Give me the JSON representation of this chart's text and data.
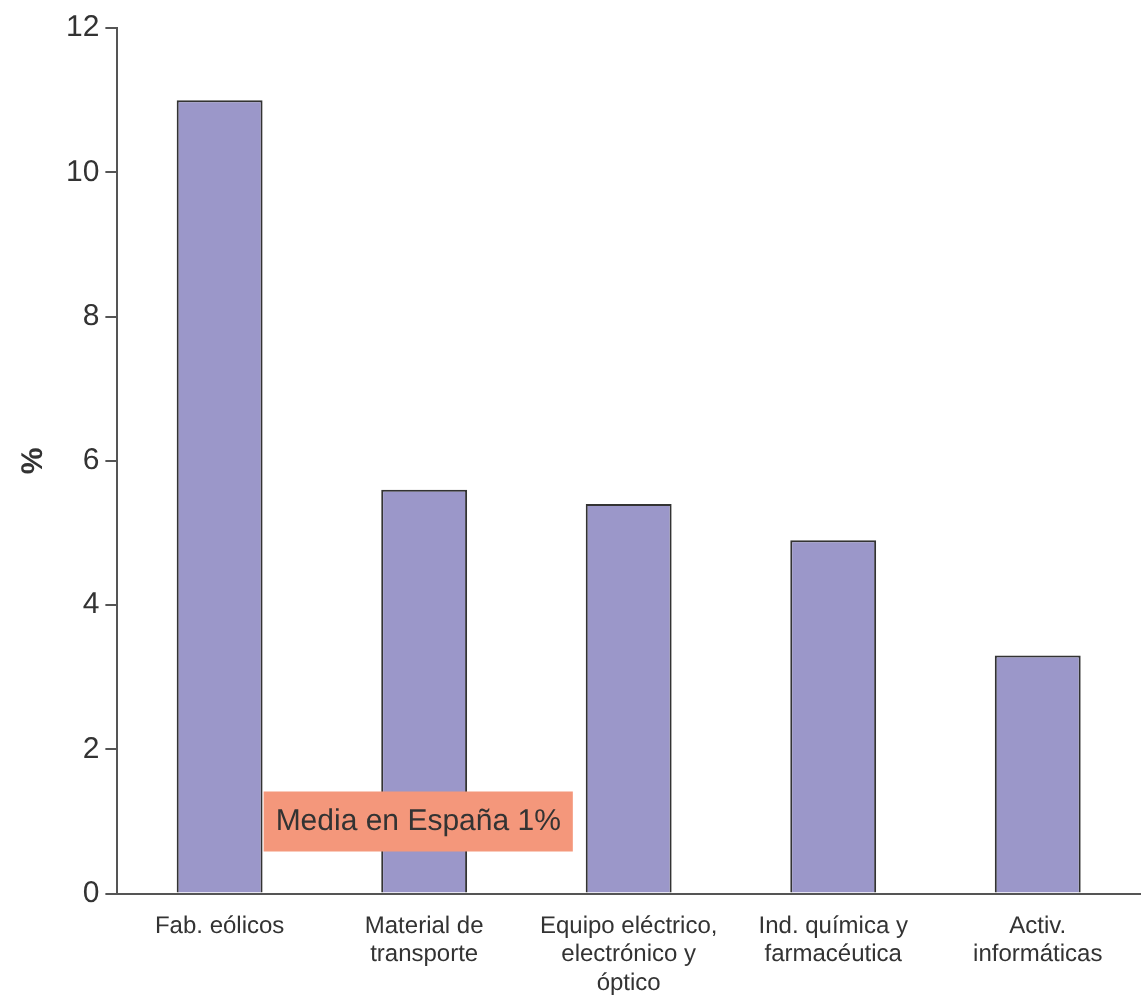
{
  "chart_data": {
    "type": "bar",
    "ylabel": "%",
    "categories": [
      "Fab. eólicos",
      "Material de transporte",
      "Equipo eléctrico, electrónico y óptico",
      "Ind. química y farmacéutica",
      "Activ. informáticas"
    ],
    "values": [
      11,
      5.6,
      5.4,
      4.9,
      3.3
    ],
    "color": "#9b97c9",
    "ylim": [
      0,
      12
    ],
    "yticks": [
      0,
      2,
      4,
      6,
      8,
      10,
      12
    ],
    "grid": false,
    "legend": false,
    "annotations": [
      "Media en España 1%"
    ]
  }
}
